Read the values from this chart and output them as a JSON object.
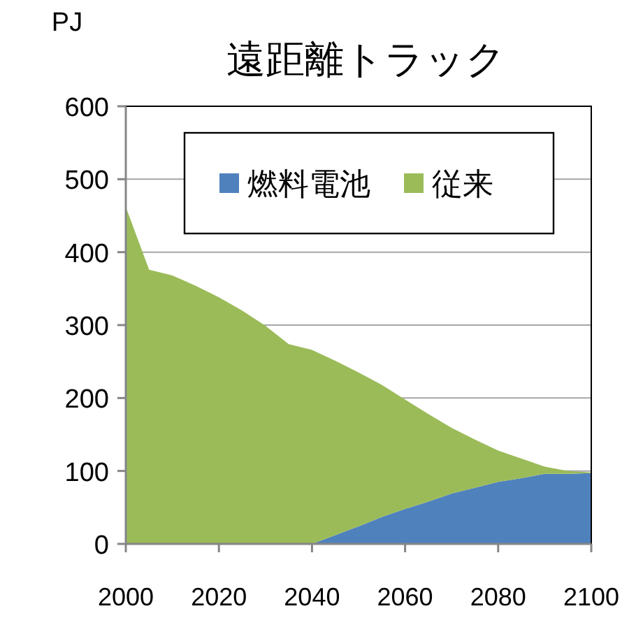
{
  "chart_data": {
    "type": "area",
    "title": "遠距離トラック",
    "ylabel": "PJ",
    "stacked": true,
    "x": [
      2000,
      2005,
      2010,
      2015,
      2020,
      2025,
      2030,
      2035,
      2040,
      2045,
      2050,
      2055,
      2060,
      2065,
      2070,
      2075,
      2080,
      2085,
      2090,
      2095,
      2100
    ],
    "series": [
      {
        "name": "燃料電池",
        "color": "#4f81bd",
        "values": [
          0,
          0,
          0,
          0,
          0,
          0,
          0,
          0,
          0,
          12,
          24,
          37,
          48,
          58,
          69,
          77,
          85,
          90,
          96,
          96,
          97
        ]
      },
      {
        "name": "従来",
        "color": "#9bbb59",
        "values": [
          462,
          376,
          368,
          354,
          338,
          320,
          299,
          274,
          266,
          239,
          211,
          181,
          150,
          120,
          90,
          66,
          43,
          27,
          10,
          4,
          1
        ]
      }
    ],
    "xlim": [
      2000,
      2100
    ],
    "xticks": [
      2000,
      2020,
      2040,
      2060,
      2080,
      2100
    ],
    "ylim": [
      0,
      600
    ],
    "yticks": [
      0,
      100,
      200,
      300,
      400,
      500,
      600
    ],
    "grid": "y",
    "legend": "top"
  }
}
